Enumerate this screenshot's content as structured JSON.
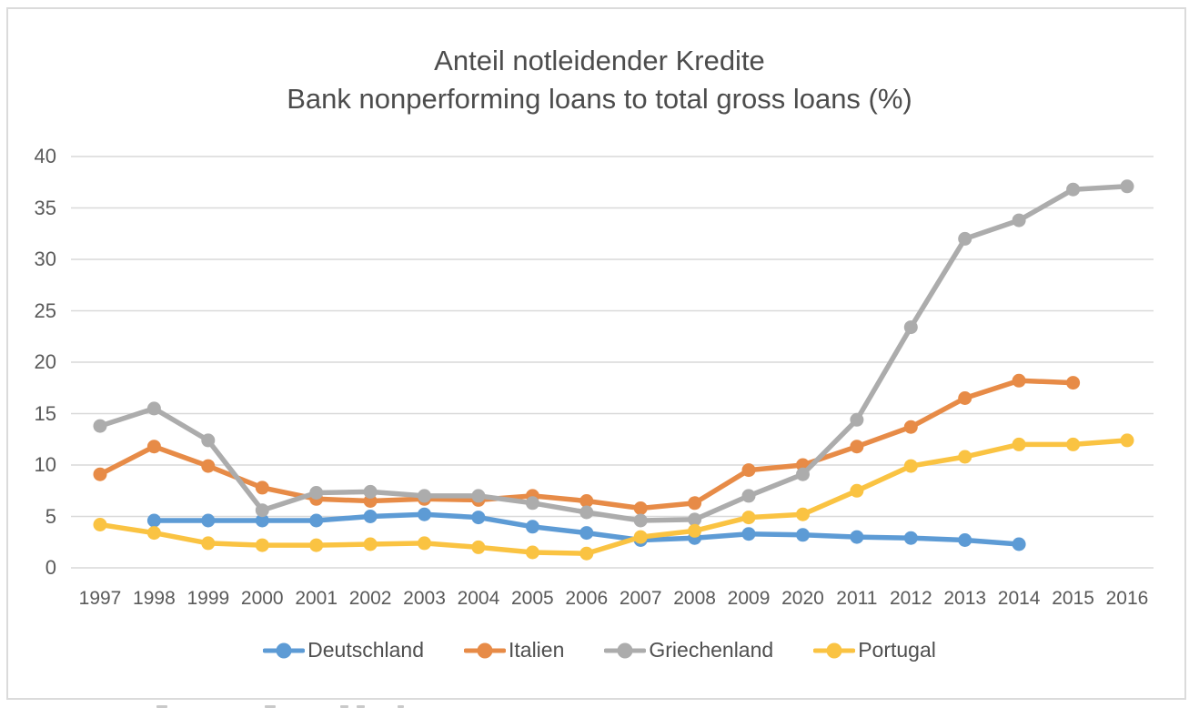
{
  "title": "Anteil notleidender Kredite",
  "subtitle": "Bank nonperforming loans to total gross loans (%)",
  "colors": {
    "grid": "#D9D9D9",
    "frame_border": "#DBDBDB",
    "axis_text": "#5A5A5A",
    "title_text": "#4C4C4C"
  },
  "chart_data": {
    "type": "line",
    "title": "Anteil notleidender Kredite",
    "subtitle": "Bank nonperforming loans to total gross loans (%)",
    "categories": [
      "1997",
      "1998",
      "1999",
      "2000",
      "2001",
      "2002",
      "2003",
      "2004",
      "2005",
      "2006",
      "2007",
      "2008",
      "2009",
      "2020",
      "2011",
      "2012",
      "2013",
      "2014",
      "2015",
      "2016"
    ],
    "series": [
      {
        "name": "Deutschland",
        "color": "#5D9BD5",
        "values": [
          null,
          4.6,
          4.6,
          4.6,
          4.6,
          5.0,
          5.2,
          4.9,
          4.0,
          3.4,
          2.7,
          2.9,
          3.3,
          3.2,
          3.0,
          2.9,
          2.7,
          2.3,
          null,
          null
        ]
      },
      {
        "name": "Italien",
        "color": "#E78B47",
        "values": [
          9.1,
          11.8,
          9.9,
          7.8,
          6.7,
          6.5,
          6.7,
          6.6,
          7.0,
          6.5,
          5.8,
          6.3,
          9.5,
          10.0,
          11.8,
          13.7,
          16.5,
          18.2,
          18.0,
          null
        ]
      },
      {
        "name": "Griechenland",
        "color": "#ACACAC",
        "values": [
          13.8,
          15.5,
          12.4,
          5.6,
          7.3,
          7.4,
          7.0,
          7.0,
          6.3,
          5.4,
          4.6,
          4.7,
          7.0,
          9.1,
          14.4,
          23.4,
          32.0,
          33.8,
          36.8,
          37.1
        ]
      },
      {
        "name": "Portugal",
        "color": "#FAC342",
        "values": [
          4.2,
          3.4,
          2.4,
          2.2,
          2.2,
          2.3,
          2.4,
          2.0,
          1.5,
          1.4,
          3.0,
          3.6,
          4.9,
          5.2,
          7.5,
          9.9,
          10.8,
          12.0,
          12.0,
          12.4
        ]
      }
    ],
    "ylim": [
      0,
      40
    ],
    "yticks": [
      0,
      5,
      10,
      15,
      20,
      25,
      30,
      35,
      40
    ],
    "grid": true,
    "legend_position": "bottom"
  }
}
